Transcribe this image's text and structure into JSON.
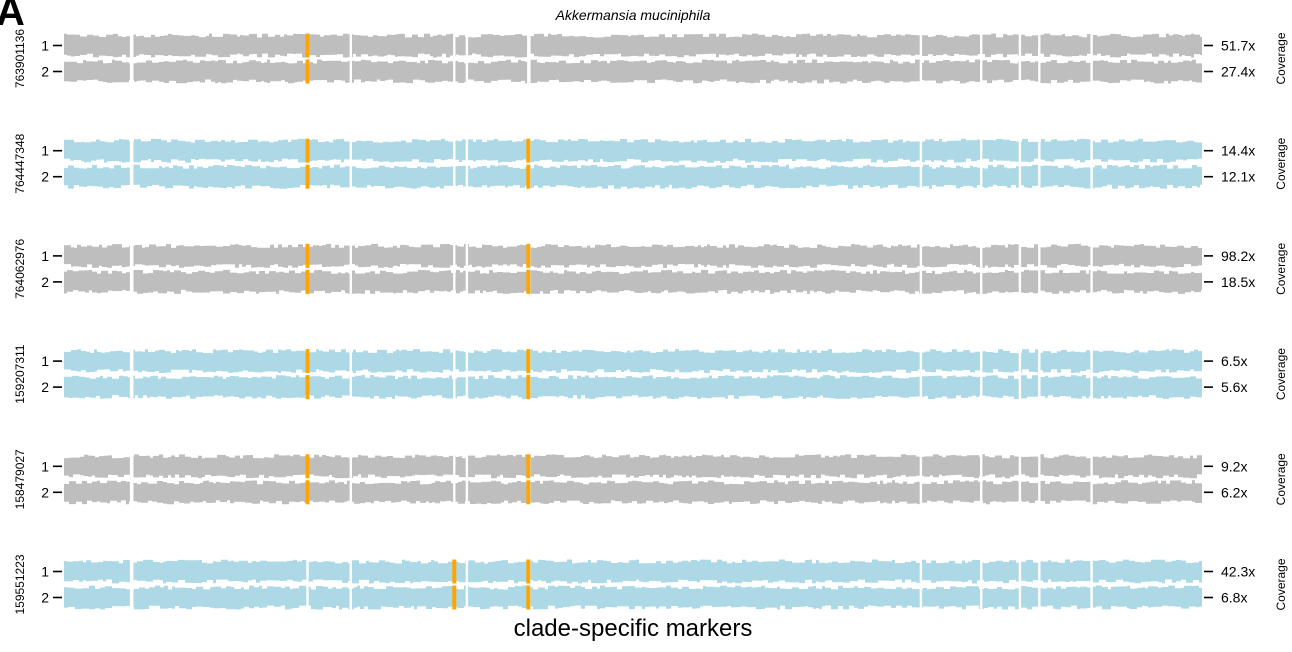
{
  "panel_label": "A",
  "chart_data": {
    "type": "coverage-track",
    "title": "Akkermansia muciniphila",
    "xlabel": "clade-specific markers",
    "side_label": "Coverage",
    "colors": {
      "light": "#add8e6",
      "gray": "#bebebe",
      "marker": "#ffa500"
    },
    "gap_positions": [
      0.059,
      0.06,
      0.214,
      0.252,
      0.343,
      0.354,
      0.408,
      0.409,
      0.753,
      0.806,
      0.84,
      0.857,
      0.903
    ],
    "samples": [
      {
        "id": "763901136",
        "color": "gray",
        "tracks": [
          {
            "label": "1",
            "coverage": "51.7x",
            "markers": [
              0.214
            ]
          },
          {
            "label": "2",
            "coverage": "27.4x",
            "markers": [
              0.214
            ]
          }
        ]
      },
      {
        "id": "764447348",
        "color": "light",
        "tracks": [
          {
            "label": "1",
            "coverage": "14.4x",
            "markers": [
              0.214,
              0.408
            ]
          },
          {
            "label": "2",
            "coverage": "12.1x",
            "markers": [
              0.214,
              0.408
            ]
          }
        ]
      },
      {
        "id": "764062976",
        "color": "gray",
        "tracks": [
          {
            "label": "1",
            "coverage": "98.2x",
            "markers": [
              0.214,
              0.408
            ]
          },
          {
            "label": "2",
            "coverage": "18.5x",
            "markers": [
              0.214,
              0.408
            ]
          }
        ]
      },
      {
        "id": "159207311",
        "color": "light",
        "tracks": [
          {
            "label": "1",
            "coverage": "6.5x",
            "markers": [
              0.214,
              0.408
            ]
          },
          {
            "label": "2",
            "coverage": "5.6x",
            "markers": [
              0.214,
              0.408
            ]
          }
        ]
      },
      {
        "id": "158479027",
        "color": "gray",
        "tracks": [
          {
            "label": "1",
            "coverage": "9.2x",
            "markers": [
              0.214,
              0.408
            ]
          },
          {
            "label": "2",
            "coverage": "6.2x",
            "markers": [
              0.214,
              0.408
            ]
          }
        ]
      },
      {
        "id": "159551223",
        "color": "light",
        "tracks": [
          {
            "label": "1",
            "coverage": "42.3x",
            "markers": [
              0.343,
              0.408
            ]
          },
          {
            "label": "2",
            "coverage": "6.8x",
            "markers": [
              0.343,
              0.408
            ]
          }
        ]
      }
    ]
  }
}
